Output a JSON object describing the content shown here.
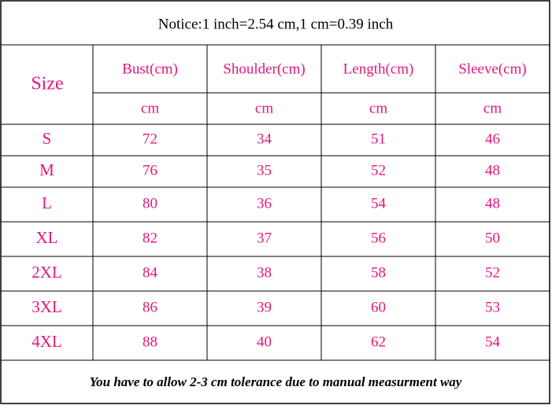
{
  "notice": "Notice:1 inch=2.54 cm,1 cm=0.39 inch",
  "table": {
    "size_header": "Size",
    "columns": [
      "Bust(cm)",
      "Shoulder(cm)",
      "Length(cm)",
      "Sleeve(cm)"
    ],
    "units": [
      "cm",
      "cm",
      "cm",
      "cm"
    ],
    "rows": [
      [
        "S",
        72,
        34,
        51,
        46
      ],
      [
        "M",
        76,
        35,
        52,
        48
      ],
      [
        "L",
        80,
        36,
        54,
        48
      ],
      [
        "XL",
        82,
        37,
        56,
        50
      ],
      [
        "2XL",
        84,
        38,
        58,
        52
      ],
      [
        "3XL",
        86,
        39,
        60,
        53
      ],
      [
        "4XL",
        88,
        40,
        62,
        54
      ]
    ]
  },
  "footer": "You have to allow 2-3 cm tolerance due to manual measurment way"
}
